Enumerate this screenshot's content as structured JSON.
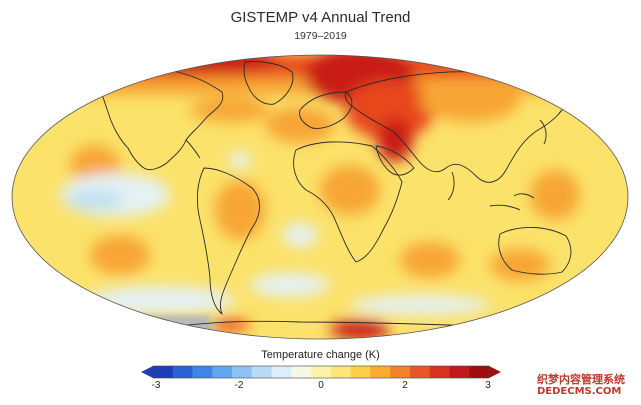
{
  "title": "GISTEMP v4 Annual Trend",
  "subtitle": "1979–2019",
  "colorbar": {
    "label": "Temperature change (K)",
    "ticks": [
      "-3",
      "-2",
      "0",
      "2",
      "3"
    ],
    "colors": [
      "#1c3fb5",
      "#2a62d8",
      "#3f86e8",
      "#63a6f0",
      "#8cc3f4",
      "#b7dbf7",
      "#dceefa",
      "#f4f8e4",
      "#fbf3a8",
      "#fde57a",
      "#fccf4a",
      "#f8ad2c",
      "#f2832a",
      "#e8572a",
      "#d83322",
      "#c11a1a",
      "#9e0e10"
    ]
  },
  "map_colors": {
    "ocean_base": "#fbe26a",
    "warm": "#f7a635",
    "hot": "#e8461e",
    "very_hot": "#c91b16",
    "cool": "#e4f1f4",
    "cold": "#bfe0ee",
    "missing": "#b8b8b8"
  },
  "watermark": {
    "line1": "织梦内容管理系统",
    "line2": "DEDECMS.COM"
  }
}
